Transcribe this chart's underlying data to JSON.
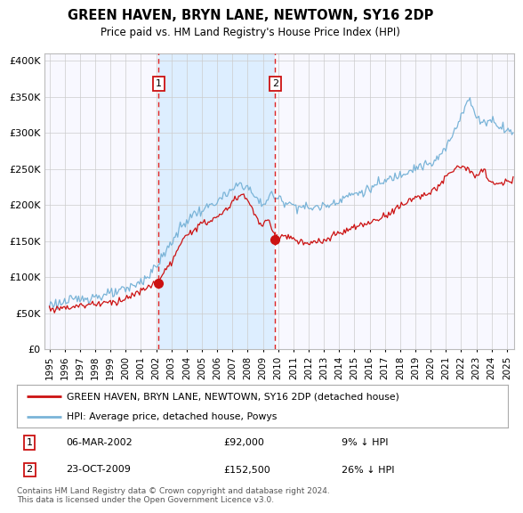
{
  "title": "GREEN HAVEN, BRYN LANE, NEWTOWN, SY16 2DP",
  "subtitle": "Price paid vs. HM Land Registry's House Price Index (HPI)",
  "legend_line1": "GREEN HAVEN, BRYN LANE, NEWTOWN, SY16 2DP (detached house)",
  "legend_line2": "HPI: Average price, detached house, Powys",
  "footer1": "Contains HM Land Registry data © Crown copyright and database right 2024.",
  "footer2": "This data is licensed under the Open Government Licence v3.0.",
  "sale1_date": "06-MAR-2002",
  "sale1_price": "£92,000",
  "sale1_hpi": "9% ↓ HPI",
  "sale2_date": "23-OCT-2009",
  "sale2_price": "£152,500",
  "sale2_hpi": "26% ↓ HPI",
  "sale1_x": 2002.17,
  "sale1_y": 92000,
  "sale2_x": 2009.8,
  "sale2_y": 152500,
  "hpi_color": "#7ab4d8",
  "price_color": "#cc1111",
  "vline_color": "#dd2222",
  "shade_color": "#ddeeff",
  "plot_bg": "#f8f8ff",
  "grid_color": "#cccccc",
  "ylim": [
    0,
    410000
  ],
  "xlim_start": 1994.7,
  "xlim_end": 2025.5,
  "yticks": [
    0,
    50000,
    100000,
    150000,
    200000,
    250000,
    300000,
    350000,
    400000
  ],
  "ytick_labels": [
    "£0",
    "£50K",
    "£100K",
    "£150K",
    "£200K",
    "£250K",
    "£300K",
    "£350K",
    "£400K"
  ],
  "xtick_years": [
    1995,
    1996,
    1997,
    1998,
    1999,
    2000,
    2001,
    2002,
    2003,
    2004,
    2005,
    2006,
    2007,
    2008,
    2009,
    2010,
    2011,
    2012,
    2013,
    2014,
    2015,
    2016,
    2017,
    2018,
    2019,
    2020,
    2021,
    2022,
    2023,
    2024,
    2025
  ]
}
